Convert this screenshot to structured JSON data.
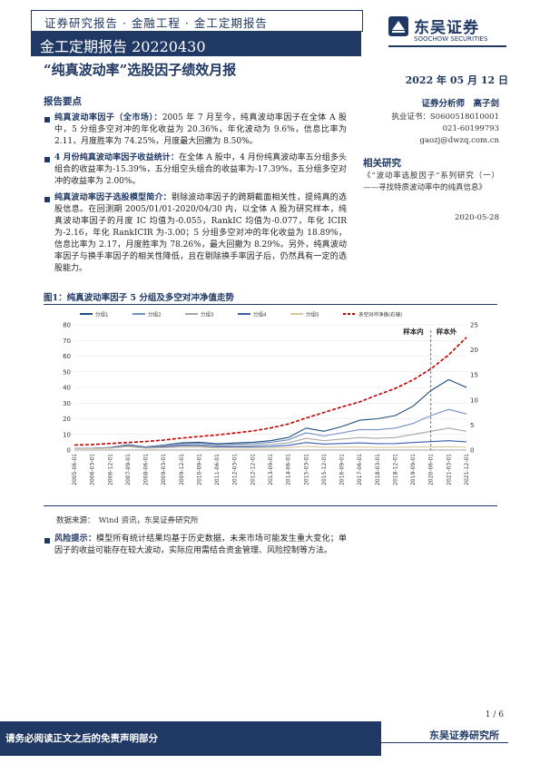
{
  "header": {
    "tagline": "证券研究报告 · 金融工程 · 金工定期报告",
    "section": "金工定期报告 20220430",
    "logo_cn": "东吴证券",
    "logo_en": "SOOCHOW SECURITIES",
    "logo_mark": "SCS"
  },
  "title": "“纯真波动率”选股因子绩效月报",
  "date": "2022 年 05 月 12 日",
  "summary_heading": "报告要点",
  "points": [
    {
      "lead": "纯真波动率因子（全市场）：",
      "text": "2005 年 7 月至今，纯真波动率因子在全体 A 股中，5 分组多空对冲的年化收益为 20.36%，年化波动为 9.6%，信息比率为 2.11，月度胜率为 74.25%，月度最大回撤为 8.50%。"
    },
    {
      "lead": "4 月份纯真波动率因子收益统计：",
      "text": "在全体 A 股中，4 月份纯真波动率五分组多头组合的收益率为-15.39%，五分组空头组合的收益率为-17.39%，五分组多空对冲的收益率为 2.00%。"
    },
    {
      "lead": "纯真波动率因子选股模型简介：",
      "text": "剔除波动率因子的跨期截面相关性，提纯真的选股信息。在回测期 2005/01/01-2020/04/30 内，以全体 A 股为研究样本，纯真波动率因子的月度 IC 均值为-0.055，RankIC 均值为-0.077，年化 ICIR 为-2.16，年化 RankICIR 为-3.00；5 分组多空对冲的年化收益为 18.89%，信息比率为 2.17，月度胜率为 78.26%，最大回撤为 8.29%。另外，纯真波动率因子与换手率因子的相关性降低，且在剔除换手率因子后，仍然具有一定的选股能力。"
    }
  ],
  "analyst": {
    "role": "证券分析师　高子剑",
    "cert": "执业证书：S0600518010001",
    "phone": "021-60199793",
    "email": "gaozj@dwzq.com.cn"
  },
  "related": {
    "heading": "相关研究",
    "item": "《“波动率选股因子”系列研究（一）——寻找特质波动率中的纯真信息》",
    "date": "2020-05-28"
  },
  "figure": {
    "title": "图1：纯真波动率因子 5 分组及多空对冲净值走势",
    "source": "数据来源：　Wind 资讯，东吴证券研究所"
  },
  "risk": {
    "lead": "风险提示：",
    "text": "模型所有统计结果均基于历史数据，未来市场可能发生重大变化；单因子的收益可能存在较大波动，实际应用需结合资金管理、风险控制等方法。"
  },
  "footer": {
    "page": "1 / 6",
    "disclaimer": "请务必阅读正文之后的免责声明部分",
    "company": "东吴证券研究所"
  },
  "colors": {
    "brand": "#1f3864",
    "g1": "#1f4e79",
    "g2": "#6f8fc8",
    "g3": "#a6a6a6",
    "g4": "#3a5fb0",
    "g5": "#d9c7a0",
    "ls": "#c00000"
  },
  "chart_data": {
    "type": "line",
    "title": "",
    "legend": [
      "分组1",
      "分组2",
      "分组3",
      "分组4",
      "分组5",
      "多空对冲净值(右轴)"
    ],
    "legend_position": "top",
    "annotations": [
      "样本内",
      "样本外"
    ],
    "xticks": [
      "2005-06-01",
      "2006-03-01",
      "2006-12-01",
      "2007-09-01",
      "2008-06-01",
      "2009-03-01",
      "2009-12-01",
      "2010-09-01",
      "2011-06-01",
      "2012-03-01",
      "2012-12-01",
      "2013-09-01",
      "2014-06-01",
      "2015-03-01",
      "2015-12-01",
      "2016-09-01",
      "2017-06-01",
      "2018-03-01",
      "2018-12-01",
      "2019-09-01",
      "2020-06-01",
      "2021-03-01",
      "2021-12-01"
    ],
    "ylim_left": [
      0,
      80
    ],
    "yticks_left": [
      0,
      10,
      20,
      30,
      40,
      50,
      60,
      70,
      80
    ],
    "ylim_right": [
      0,
      25
    ],
    "yticks_right": [
      0,
      5,
      10,
      15,
      20,
      25
    ],
    "split_x_index": 20,
    "series": [
      {
        "name": "分组1",
        "axis": "left",
        "values": [
          1,
          1.1,
          1.6,
          3.5,
          2,
          3.2,
          4.6,
          5,
          4,
          4.5,
          5,
          6,
          8,
          14,
          12,
          15,
          19,
          20,
          22,
          28,
          38,
          45,
          40
        ]
      },
      {
        "name": "分组2",
        "axis": "left",
        "values": [
          1,
          1.1,
          1.5,
          3.3,
          1.8,
          2.9,
          4.1,
          4.3,
          3.5,
          3.8,
          4,
          5,
          6.5,
          11,
          9,
          11,
          13,
          13,
          14,
          17,
          22,
          26,
          23
        ]
      },
      {
        "name": "分组3",
        "axis": "left",
        "values": [
          1,
          1.05,
          1.4,
          3,
          1.6,
          2.5,
          3.4,
          3.5,
          2.8,
          2.9,
          3,
          3.6,
          4.6,
          7.5,
          6,
          7,
          8,
          7.5,
          8,
          10,
          12,
          14,
          12
        ]
      },
      {
        "name": "分组4",
        "axis": "left",
        "values": [
          1,
          1,
          1.3,
          2.7,
          1.4,
          2.1,
          2.7,
          2.7,
          2.1,
          2.1,
          2.1,
          2.4,
          3,
          4.8,
          3.8,
          4.2,
          4.6,
          4.1,
          4.2,
          4.8,
          5.4,
          6,
          5.2
        ]
      },
      {
        "name": "分组5",
        "axis": "left",
        "values": [
          1,
          0.95,
          1.1,
          2.2,
          1.1,
          1.5,
          1.8,
          1.7,
          1.3,
          1.2,
          1.2,
          1.3,
          1.6,
          2.4,
          1.8,
          1.9,
          2,
          1.7,
          1.7,
          1.9,
          2,
          2.1,
          1.8
        ]
      },
      {
        "name": "多空对冲净值(右轴)",
        "axis": "right",
        "values": [
          1,
          1.1,
          1.3,
          1.5,
          1.7,
          2,
          2.4,
          2.7,
          3,
          3.4,
          3.8,
          4.4,
          5.2,
          6.4,
          7.5,
          8.6,
          9.6,
          11,
          12.3,
          14,
          16.2,
          19,
          22.5
        ]
      }
    ]
  }
}
